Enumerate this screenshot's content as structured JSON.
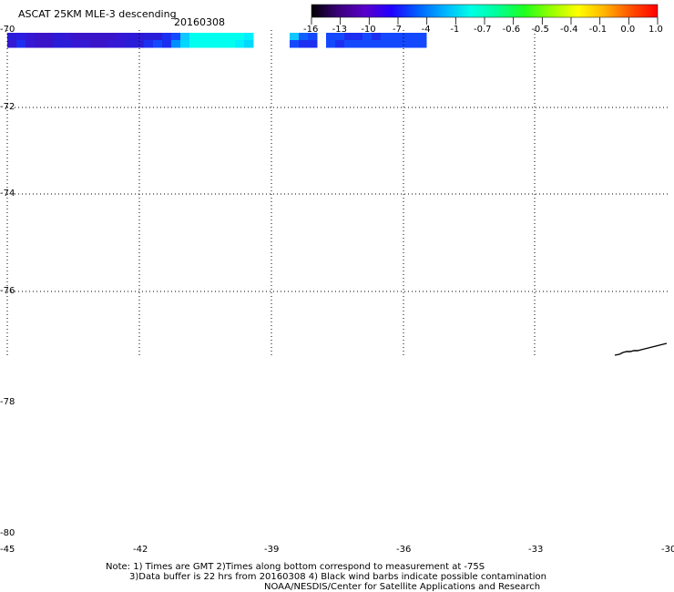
{
  "header": {
    "title": "ASCAT 25KM MLE-3 descending",
    "date": "20160308"
  },
  "colorbar": {
    "tick_labels": [
      "-16",
      "-13",
      "-10",
      "-7",
      "-4",
      "-1",
      "-0.7",
      "-0.6",
      "-0.5",
      "-0.4",
      "-0.1",
      "0.0",
      "1.0"
    ],
    "gradient_colors": [
      "#000000",
      "#3a007a",
      "#5a00c8",
      "#2200ff",
      "#0060ff",
      "#00b4ff",
      "#00ffe6",
      "#00ff96",
      "#1eff1e",
      "#96ff00",
      "#ffff00",
      "#ffb400",
      "#ff5000",
      "#ff0000"
    ]
  },
  "map": {
    "latitude_labels": [
      "-70",
      "-72",
      "-74",
      "-76",
      "-78",
      "-80"
    ],
    "longitude_labels": [
      "-45",
      "-42",
      "-39",
      "-36",
      "-33",
      "-30"
    ],
    "swath": {
      "row_top_colors": [
        "#2a1dd8",
        "#2b1ee0",
        "#3418d4",
        "#3a14c8",
        "#3a14c8",
        "#2e1ad6",
        "#3418d4",
        "#3a14c8",
        "#3a14c8",
        "#3a14c8",
        "#3a14c8",
        "#3a14c8",
        "#3418d4",
        "#2e1ad6",
        "#2e1ad6",
        "#2a1dd8",
        "#2a1dd8",
        "#1c2ff0",
        "#1448ff",
        "#10c8ff",
        "#00ffee",
        "#00ffee",
        "#00ffee",
        "#00ffee",
        "#00ffee",
        "#00ffee",
        "#00f0ff",
        "#10c8ff",
        "#1060ff",
        "#1448ff",
        "#1448ff",
        "#1448ff",
        "#1c2ff0",
        "#1c2ff0",
        "#1448ff",
        "#1c2ff0",
        "#1448ff",
        "#1448ff",
        "#1448ff",
        "#1448ff",
        "#1448ff"
      ],
      "row_bottom_colors": [
        "#3418d4",
        "#1c2ff0",
        "#3418d4",
        "#3a14c8",
        "#3a14c8",
        "#2a1dd8",
        "#2a1dd8",
        "#3418d4",
        "#3418d4",
        "#3a14c8",
        "#3a14c8",
        "#3418d4",
        "#3418d4",
        "#2a1dd8",
        "#2a1dd8",
        "#1c2ff0",
        "#1448ff",
        "#1c2ff0",
        "#0090ff",
        "#00d8ff",
        "#00ffee",
        "#00ffee",
        "#00ffee",
        "#00ffee",
        "#00ffee",
        "#00f0ff",
        "#00d8ff",
        "#1448ff",
        "#1c2ff0",
        "#1c2ff0",
        "#1448ff",
        "#1c2ff0",
        "#1448ff",
        "#1448ff",
        "#1448ff",
        "#1448ff",
        "#1448ff",
        "#1448ff",
        "#1448ff",
        "#1448ff",
        "#1448ff"
      ],
      "gap_after_column_index": [
        27,
        30
      ]
    }
  },
  "notes": {
    "line1": "Note: 1) Times are GMT 2)Times along bottom correspond to measurement at -75S",
    "line2": "3)Data buffer is 22 hrs from 20160308 4) Black wind barbs indicate possible contamination",
    "line3": "NOAA/NESDIS/Center for Satellite Applications and Research"
  }
}
